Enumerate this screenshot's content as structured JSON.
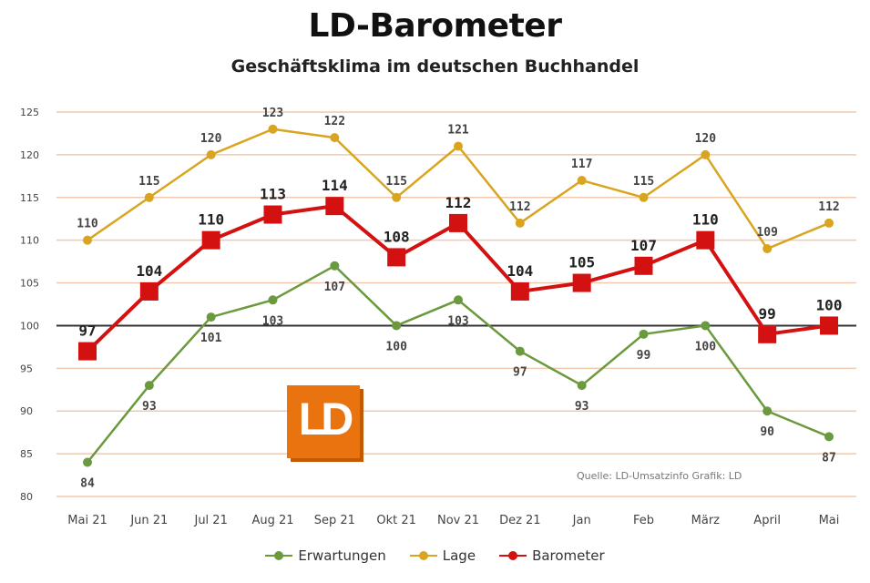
{
  "title": "LD-Barometer",
  "subtitle": "Geschäftsklima im deutschen Buchhandel",
  "source": "Quelle: LD-Umsatzinfo Grafik: LD",
  "logo_text": "LD",
  "colors": {
    "erwartungen": "#6a9a3d",
    "lage": "#d9a520",
    "barometer": "#d41111",
    "gridline": "#f0c9ae",
    "baseline": "#333333",
    "logo": "#e8730f"
  },
  "chart_data": {
    "type": "line",
    "title": "LD-Barometer",
    "subtitle": "Geschäftsklima im deutschen Buchhandel",
    "categories": [
      "Mai 21",
      "Jun 21",
      "Jul 21",
      "Aug 21",
      "Sep 21",
      "Okt 21",
      "Nov 21",
      "Dez 21",
      "Jan",
      "Feb",
      "März",
      "April",
      "Mai"
    ],
    "ylim": [
      80,
      125
    ],
    "yticks": [
      80,
      85,
      90,
      95,
      100,
      105,
      110,
      115,
      120,
      125
    ],
    "baseline": 100,
    "grid": true,
    "legend_position": "bottom",
    "series": [
      {
        "name": "Erwartungen",
        "key": "erwartungen",
        "values": [
          84,
          93,
          101,
          103,
          107,
          100,
          103,
          97,
          93,
          99,
          100,
          90,
          87
        ],
        "label_pos": [
          "below",
          "below",
          "below",
          "below",
          "below",
          "below",
          "below",
          "below",
          "below",
          "below",
          "below",
          "below",
          "below"
        ]
      },
      {
        "name": "Lage",
        "key": "lage",
        "values": [
          110,
          115,
          120,
          123,
          122,
          115,
          121,
          112,
          117,
          115,
          120,
          109,
          112
        ],
        "label_pos": [
          "above",
          "above",
          "above",
          "above",
          "above",
          "above",
          "above",
          "above",
          "above",
          "above",
          "above",
          "above",
          "above"
        ]
      },
      {
        "name": "Barometer",
        "key": "barometer",
        "values": [
          97,
          104,
          110,
          113,
          114,
          108,
          112,
          104,
          105,
          107,
          110,
          99,
          100
        ],
        "label_pos": [
          "above",
          "above",
          "above",
          "above",
          "above",
          "above",
          "above",
          "above",
          "above",
          "above",
          "above",
          "above",
          "above"
        ]
      }
    ]
  }
}
